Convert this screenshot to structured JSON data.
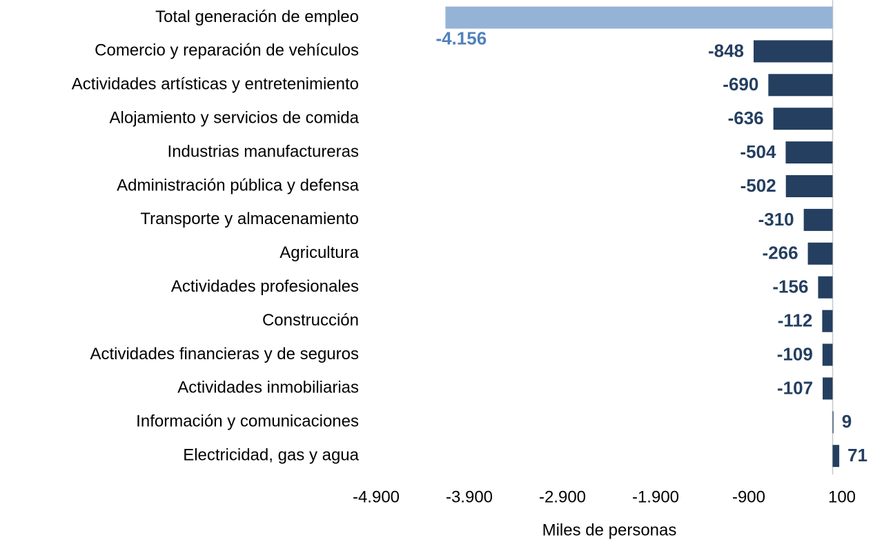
{
  "chart_data": {
    "type": "hbar",
    "xlabel": "Miles de personas",
    "categories": [
      "Total generación de empleo",
      "Comercio y reparación de vehículos",
      "Actividades artísticas y entretenimiento",
      "Alojamiento y servicios de comida",
      "Industrias manufactureras",
      "Administración pública y defensa",
      "Transporte y almacenamiento",
      "Agricultura",
      "Actividades profesionales",
      "Construcción",
      "Actividades financieras y de seguros",
      "Actividades inmobiliarias",
      "Información y comunicaciones",
      "Electricidad, gas y agua"
    ],
    "values": [
      -4156,
      -848,
      -690,
      -636,
      -504,
      -502,
      -310,
      -266,
      -156,
      -112,
      -109,
      -107,
      9,
      71
    ],
    "value_labels": [
      "-4.156",
      "-848",
      "-690",
      "-636",
      "-504",
      "-502",
      "-310",
      "-266",
      "-156",
      "-112",
      "-109",
      "-107",
      "9",
      "71"
    ],
    "colors": [
      "#95b3d7",
      "#243f60",
      "#243f60",
      "#243f60",
      "#243f60",
      "#243f60",
      "#243f60",
      "#243f60",
      "#243f60",
      "#243f60",
      "#243f60",
      "#243f60",
      "#243f60",
      "#243f60"
    ],
    "label_colors": [
      "#4f81bd",
      "#243f60",
      "#243f60",
      "#243f60",
      "#243f60",
      "#243f60",
      "#243f60",
      "#243f60",
      "#243f60",
      "#243f60",
      "#243f60",
      "#243f60",
      "#243f60",
      "#243f60"
    ],
    "xlim": [
      -4900,
      100
    ],
    "xticks": [
      {
        "value": -4900,
        "label": "-4.900"
      },
      {
        "value": -3900,
        "label": "-3.900"
      },
      {
        "value": -2900,
        "label": "-2.900"
      },
      {
        "value": -1900,
        "label": "-1.900"
      },
      -900,
      100
    ]
  }
}
